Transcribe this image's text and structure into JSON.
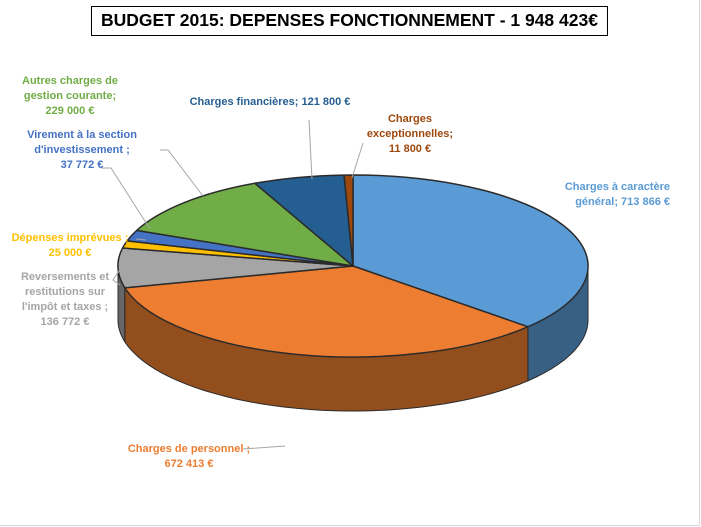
{
  "chart_data": {
    "type": "pie",
    "title": "BUDGET 2015: DEPENSES FONCTIONNEMENT - 1 948 423€",
    "slices": [
      {
        "name": "Charges à caractère général",
        "value": 713866,
        "value_label": "713 866 €",
        "color": "#5b9bd5",
        "label_lines": [
          "Charges à caractère",
          "général; 713 866 €"
        ]
      },
      {
        "name": "Charges de personnel",
        "value": 672413,
        "value_label": "672 413 €",
        "color": "#ed7d31",
        "label_lines": [
          "Charges de personnel ;",
          "672 413 €"
        ]
      },
      {
        "name": "Reversements et restitutions sur l'impôt et taxes",
        "value": 136772,
        "value_label": "136 772 €",
        "color": "#a5a5a5",
        "label_lines": [
          "Reversements et",
          "restitutions sur",
          "l'impôt et taxes ;",
          "136 772 €"
        ]
      },
      {
        "name": "Dépenses imprévues",
        "value": 25000,
        "value_label": "25 000 €",
        "color": "#ffc000",
        "label_lines": [
          "Dépenses imprévues ;",
          "25 000 €"
        ]
      },
      {
        "name": "Virement à la section d'investissement",
        "value": 37772,
        "value_label": "37 772 €",
        "color": "#4472c4",
        "label_lines": [
          "Virement à la section",
          "d'investissement ;",
          "37 772 €"
        ]
      },
      {
        "name": "Autres charges de gestion courante",
        "value": 229000,
        "value_label": "229 000 €",
        "color": "#70ad47",
        "label_lines": [
          "Autres charges de",
          "gestion courante;",
          "229 000 €"
        ]
      },
      {
        "name": "Charges financières",
        "value": 121800,
        "value_label": "121 800 €",
        "color": "#255e91",
        "label_lines": [
          "Charges financières; 121 800 €"
        ]
      },
      {
        "name": "Charges exceptionnelles",
        "value": 11800,
        "value_label": "11 800 €",
        "color": "#9e480e",
        "label_lines": [
          "Charges",
          "exceptionnelles;",
          "11 800 €"
        ]
      }
    ],
    "label_colors": [
      "#5b9bd5",
      "#ed7d31",
      "#a5a5a5",
      "#ffc000",
      "#4472c4",
      "#70ad47",
      "#255e91",
      "#9e480e"
    ],
    "legend": "none"
  }
}
